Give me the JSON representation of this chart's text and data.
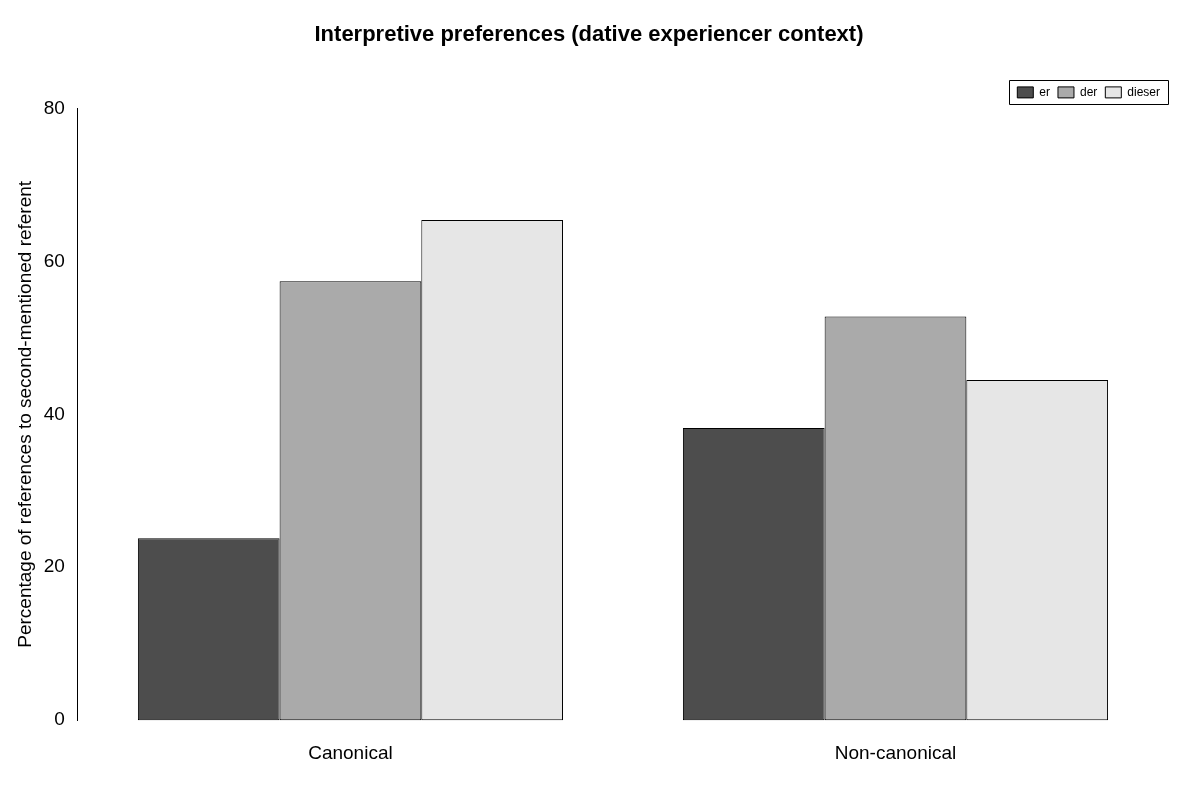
{
  "chart_data": {
    "type": "bar",
    "title": "Interpretive preferences (dative experiencer context)",
    "ylabel": "Percentage of references to second-mentioned referent",
    "categories": [
      "Canonical",
      "Non-canonical"
    ],
    "series": [
      {
        "name": "er",
        "color": "#4d4d4d",
        "values": [
          23.8,
          38.2
        ]
      },
      {
        "name": "der",
        "color": "#aaaaaa",
        "values": [
          57.4,
          52.8
        ]
      },
      {
        "name": "dieser",
        "color": "#e6e6e6",
        "values": [
          65.4,
          44.5
        ]
      }
    ],
    "ylim": [
      0,
      80
    ],
    "yticks": [
      0,
      20,
      40,
      60,
      80
    ],
    "grid": false,
    "legend": "top right"
  }
}
